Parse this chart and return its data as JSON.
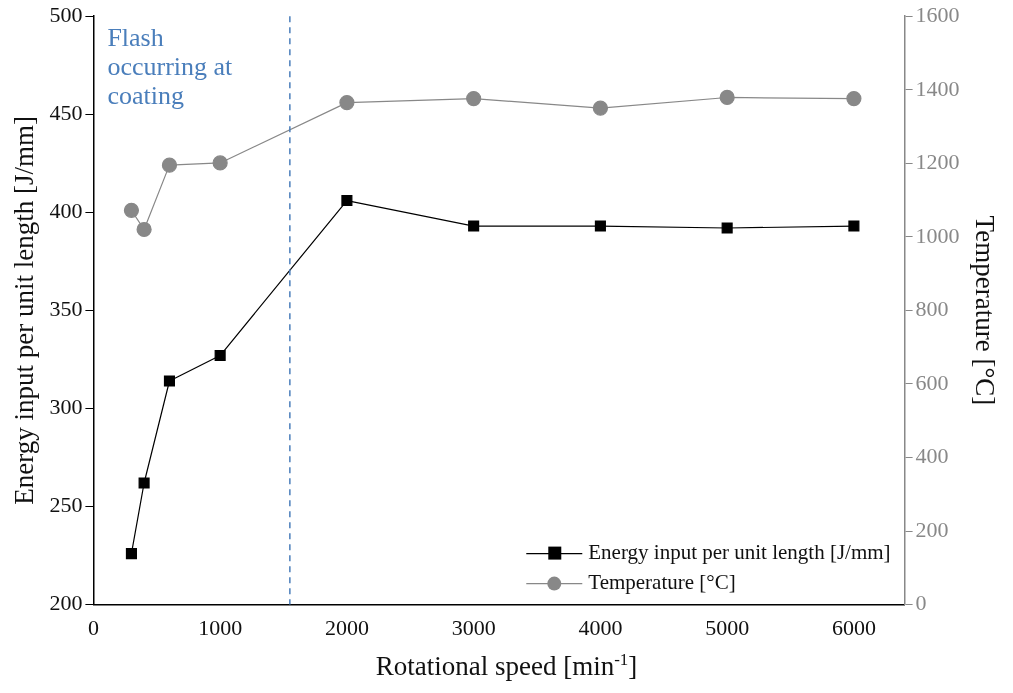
{
  "chart_data": {
    "type": "line",
    "xlabel": "Rotational speed [min$^{-1}$]",
    "ylabel": "Energy input per unit length [J/mm]",
    "y2label": "Temperature [°C]",
    "x": [
      300,
      400,
      600,
      1000,
      2000,
      3000,
      4000,
      5000,
      6000
    ],
    "series": [
      {
        "name": "Energy input per unit length [J/mm]",
        "color": "#000000",
        "marker": "square",
        "values": [
          226,
          262,
          314,
          327,
          406,
          393,
          393,
          392,
          393
        ]
      },
      {
        "name": "Temperature [°C]",
        "color": "#888888",
        "marker": "circle",
        "axis": "y2",
        "values": [
          1072,
          1020,
          1195,
          1201,
          1365,
          1376,
          1350,
          1379,
          1376
        ]
      }
    ],
    "xlim": [
      0,
      6400
    ],
    "xticks": [
      0,
      1000,
      2000,
      3000,
      4000,
      5000,
      6000
    ],
    "ylim": [
      200,
      500
    ],
    "yticks": [
      200,
      250,
      300,
      350,
      400,
      450,
      500
    ],
    "y2lim": [
      0,
      1600
    ],
    "y2ticks": [
      0,
      200,
      400,
      600,
      800,
      1000,
      1200,
      1400,
      1600
    ],
    "ref_lines": [
      {
        "axis": "x",
        "value": 1550,
        "label": "Flash occurring at coating",
        "color": "#4a7ebb",
        "line_style": "dashed"
      }
    ],
    "legend": "bottom right",
    "grid": false,
    "line_style": "solid"
  }
}
